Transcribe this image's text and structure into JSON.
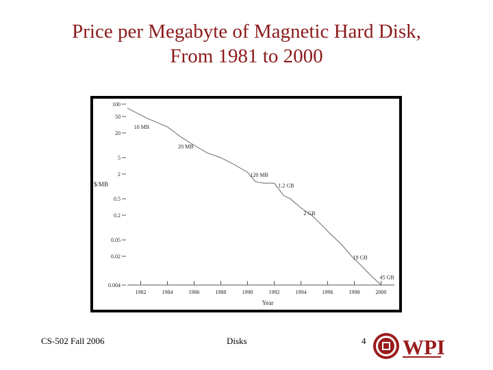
{
  "slide": {
    "title_line1": "Price per Megabyte of Magnetic Hard Disk,",
    "title_line2": "From 1981 to 2000"
  },
  "footer": {
    "course": "CS-502 Fall 2006",
    "topic": "Disks",
    "page": "4"
  },
  "logo": {
    "text": "WPI"
  },
  "colors": {
    "title": "#8b1a1a",
    "logo": "#9a1c1c",
    "frame": "#000000"
  },
  "chart_data": {
    "type": "line",
    "xlabel": "Year",
    "ylabel": "$/MB",
    "yscale": "log",
    "xlim": [
      1981,
      2001
    ],
    "ylim": [
      0.004,
      100
    ],
    "grid": false,
    "x_ticks": [
      "1982",
      "1984",
      "1986",
      "1988",
      "1990",
      "1992",
      "1994",
      "1996",
      "1998",
      "2000"
    ],
    "y_ticks": [
      "100",
      "50",
      "20",
      "5",
      "2",
      "0.5",
      "0.2",
      "0.05",
      "0.02",
      "0.004"
    ],
    "series": [
      {
        "x": [
          1981.0,
          1982.5,
          1984.0,
          1985.0,
          1986.0,
          1987.0,
          1988.0,
          1989.0,
          1990.0,
          1990.6,
          1991.2,
          1992.0,
          1992.7,
          1993.2,
          1994.0,
          1994.8,
          1995.5,
          1996.2,
          1997.0,
          1997.8,
          1998.5,
          1999.2,
          2000.0
        ],
        "values": [
          80,
          45,
          28,
          16,
          10,
          6.5,
          5,
          3.4,
          2.2,
          1.3,
          1.2,
          1.2,
          0.6,
          0.5,
          0.3,
          0.2,
          0.12,
          0.07,
          0.04,
          0.02,
          0.012,
          0.007,
          0.004
        ]
      }
    ],
    "annotations": [
      {
        "text": "10 MB",
        "x": 1981.5,
        "y": 25
      },
      {
        "text": "20 MB",
        "x": 1984.8,
        "y": 8.5
      },
      {
        "text": "120 MB",
        "x": 1990.2,
        "y": 1.7
      },
      {
        "text": "1.2 GB",
        "x": 1992.3,
        "y": 0.95
      },
      {
        "text": "2 GB",
        "x": 1994.2,
        "y": 0.2
      },
      {
        "text": "19 GB",
        "x": 1997.9,
        "y": 0.017
      },
      {
        "text": "45 GB",
        "x": 1999.9,
        "y": 0.0055
      }
    ]
  }
}
